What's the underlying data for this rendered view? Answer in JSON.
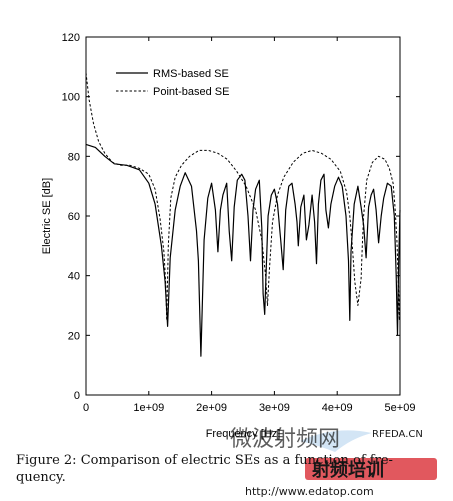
{
  "chart_data": {
    "type": "line",
    "title": "",
    "xlabel": "Frequency [Hz]",
    "ylabel": "Electric SE [dB]",
    "xlim": [
      0,
      5000000000
    ],
    "ylim": [
      0,
      120
    ],
    "x_ticks": [
      0,
      1000000000,
      2000000000,
      3000000000,
      4000000000,
      5000000000
    ],
    "x_tick_labels": [
      "0",
      "1e+09",
      "2e+09",
      "3e+09",
      "4e+09",
      "5e+09"
    ],
    "y_ticks": [
      0,
      20,
      40,
      60,
      80,
      100,
      120
    ],
    "y_tick_labels": [
      "0",
      "20",
      "40",
      "60",
      "80",
      "100",
      "120"
    ],
    "grid": false,
    "legend_position": "top-right",
    "series": [
      {
        "name": "RMS-based SE",
        "style": "solid",
        "x": [
          0,
          150000000,
          300000000,
          450000000,
          650000000,
          850000000,
          1000000000,
          1100000000,
          1200000000,
          1260000000,
          1300000000,
          1340000000,
          1420000000,
          1500000000,
          1580000000,
          1680000000,
          1760000000,
          1790000000,
          1830000000,
          1880000000,
          1940000000,
          2000000000,
          2060000000,
          2100000000,
          2140000000,
          2180000000,
          2240000000,
          2280000000,
          2320000000,
          2360000000,
          2410000000,
          2480000000,
          2530000000,
          2580000000,
          2620000000,
          2660000000,
          2700000000,
          2760000000,
          2800000000,
          2820000000,
          2845000000,
          2870000000,
          2900000000,
          2950000000,
          3000000000,
          3050000000,
          3100000000,
          3140000000,
          3180000000,
          3230000000,
          3280000000,
          3330000000,
          3360000000,
          3380000000,
          3420000000,
          3470000000,
          3510000000,
          3550000000,
          3600000000,
          3640000000,
          3670000000,
          3700000000,
          3740000000,
          3790000000,
          3820000000,
          3860000000,
          3900000000,
          3960000000,
          4020000000,
          4080000000,
          4140000000,
          4180000000,
          4200000000,
          4220000000,
          4270000000,
          4330000000,
          4380000000,
          4420000000,
          4460000000,
          4500000000,
          4540000000,
          4580000000,
          4620000000,
          4660000000,
          4700000000,
          4740000000,
          4800000000,
          4860000000,
          4910000000,
          4940000000,
          4960000000,
          4980000000,
          5000000000
        ],
        "y": [
          84,
          83,
          80,
          77.5,
          77,
          75.5,
          71,
          64,
          50,
          38,
          23,
          46,
          62,
          70,
          74.5,
          70,
          55,
          45,
          13,
          52,
          66,
          71,
          62,
          48,
          62,
          67,
          71,
          55,
          45,
          63,
          72,
          74,
          72,
          60,
          45,
          62,
          69,
          72,
          56,
          34,
          27,
          42,
          60,
          67,
          69,
          64,
          52,
          42,
          62,
          70,
          71,
          64,
          58,
          50,
          63,
          67,
          52,
          57,
          67,
          58,
          44,
          64,
          72,
          74,
          62,
          56,
          64,
          70,
          73,
          70,
          60,
          45,
          25,
          48,
          64,
          70,
          63,
          57,
          46,
          63,
          67,
          69,
          62,
          51,
          60,
          66,
          71,
          70,
          60,
          40,
          20,
          45,
          62
        ]
      },
      {
        "name": "Point-based SE",
        "style": "dashed",
        "x": [
          0,
          50000000,
          120000000,
          200000000,
          300000000,
          420000000,
          550000000,
          700000000,
          850000000,
          1000000000,
          1100000000,
          1180000000,
          1240000000,
          1270000000,
          1285000000,
          1310000000,
          1350000000,
          1420000000,
          1520000000,
          1650000000,
          1800000000,
          1950000000,
          2100000000,
          2250000000,
          2400000000,
          2550000000,
          2700000000,
          2800000000,
          2860000000,
          2890000000,
          2920000000,
          2970000000,
          3050000000,
          3150000000,
          3300000000,
          3450000000,
          3600000000,
          3750000000,
          3900000000,
          4050000000,
          4150000000,
          4200000000,
          4240000000,
          4280000000,
          4330000000,
          4380000000,
          4400000000,
          4420000000,
          4470000000,
          4560000000,
          4660000000,
          4760000000,
          4830000000,
          4890000000,
          4920000000,
          4950000000,
          4970000000,
          4990000000,
          5000000000
        ],
        "y": [
          108,
          99,
          91,
          85,
          81,
          78,
          77,
          77,
          76,
          74,
          69,
          59,
          48,
          37,
          25,
          50,
          66,
          73,
          77,
          80,
          82,
          82,
          81,
          79,
          75,
          70,
          62,
          52,
          40,
          30,
          42,
          58,
          67,
          73,
          78,
          81,
          82,
          81,
          79,
          75,
          68,
          60,
          50,
          38,
          30,
          39,
          50,
          60,
          72,
          78,
          80,
          79,
          76,
          71,
          63,
          52,
          40,
          25,
          38
        ]
      }
    ]
  },
  "caption": {
    "line1": "Figure 2: Comparison of electric SEs as a function of fre-",
    "line2": "quency."
  },
  "watermark": {
    "site_cn": "微波射频网",
    "brand": "RFEDA.CN",
    "promo": "射频培训",
    "url": "http://www.edatop.com"
  },
  "colors": {
    "line": "#000000",
    "watermark_blue": "#9fc3e4",
    "promo_red": "#d8262e"
  }
}
